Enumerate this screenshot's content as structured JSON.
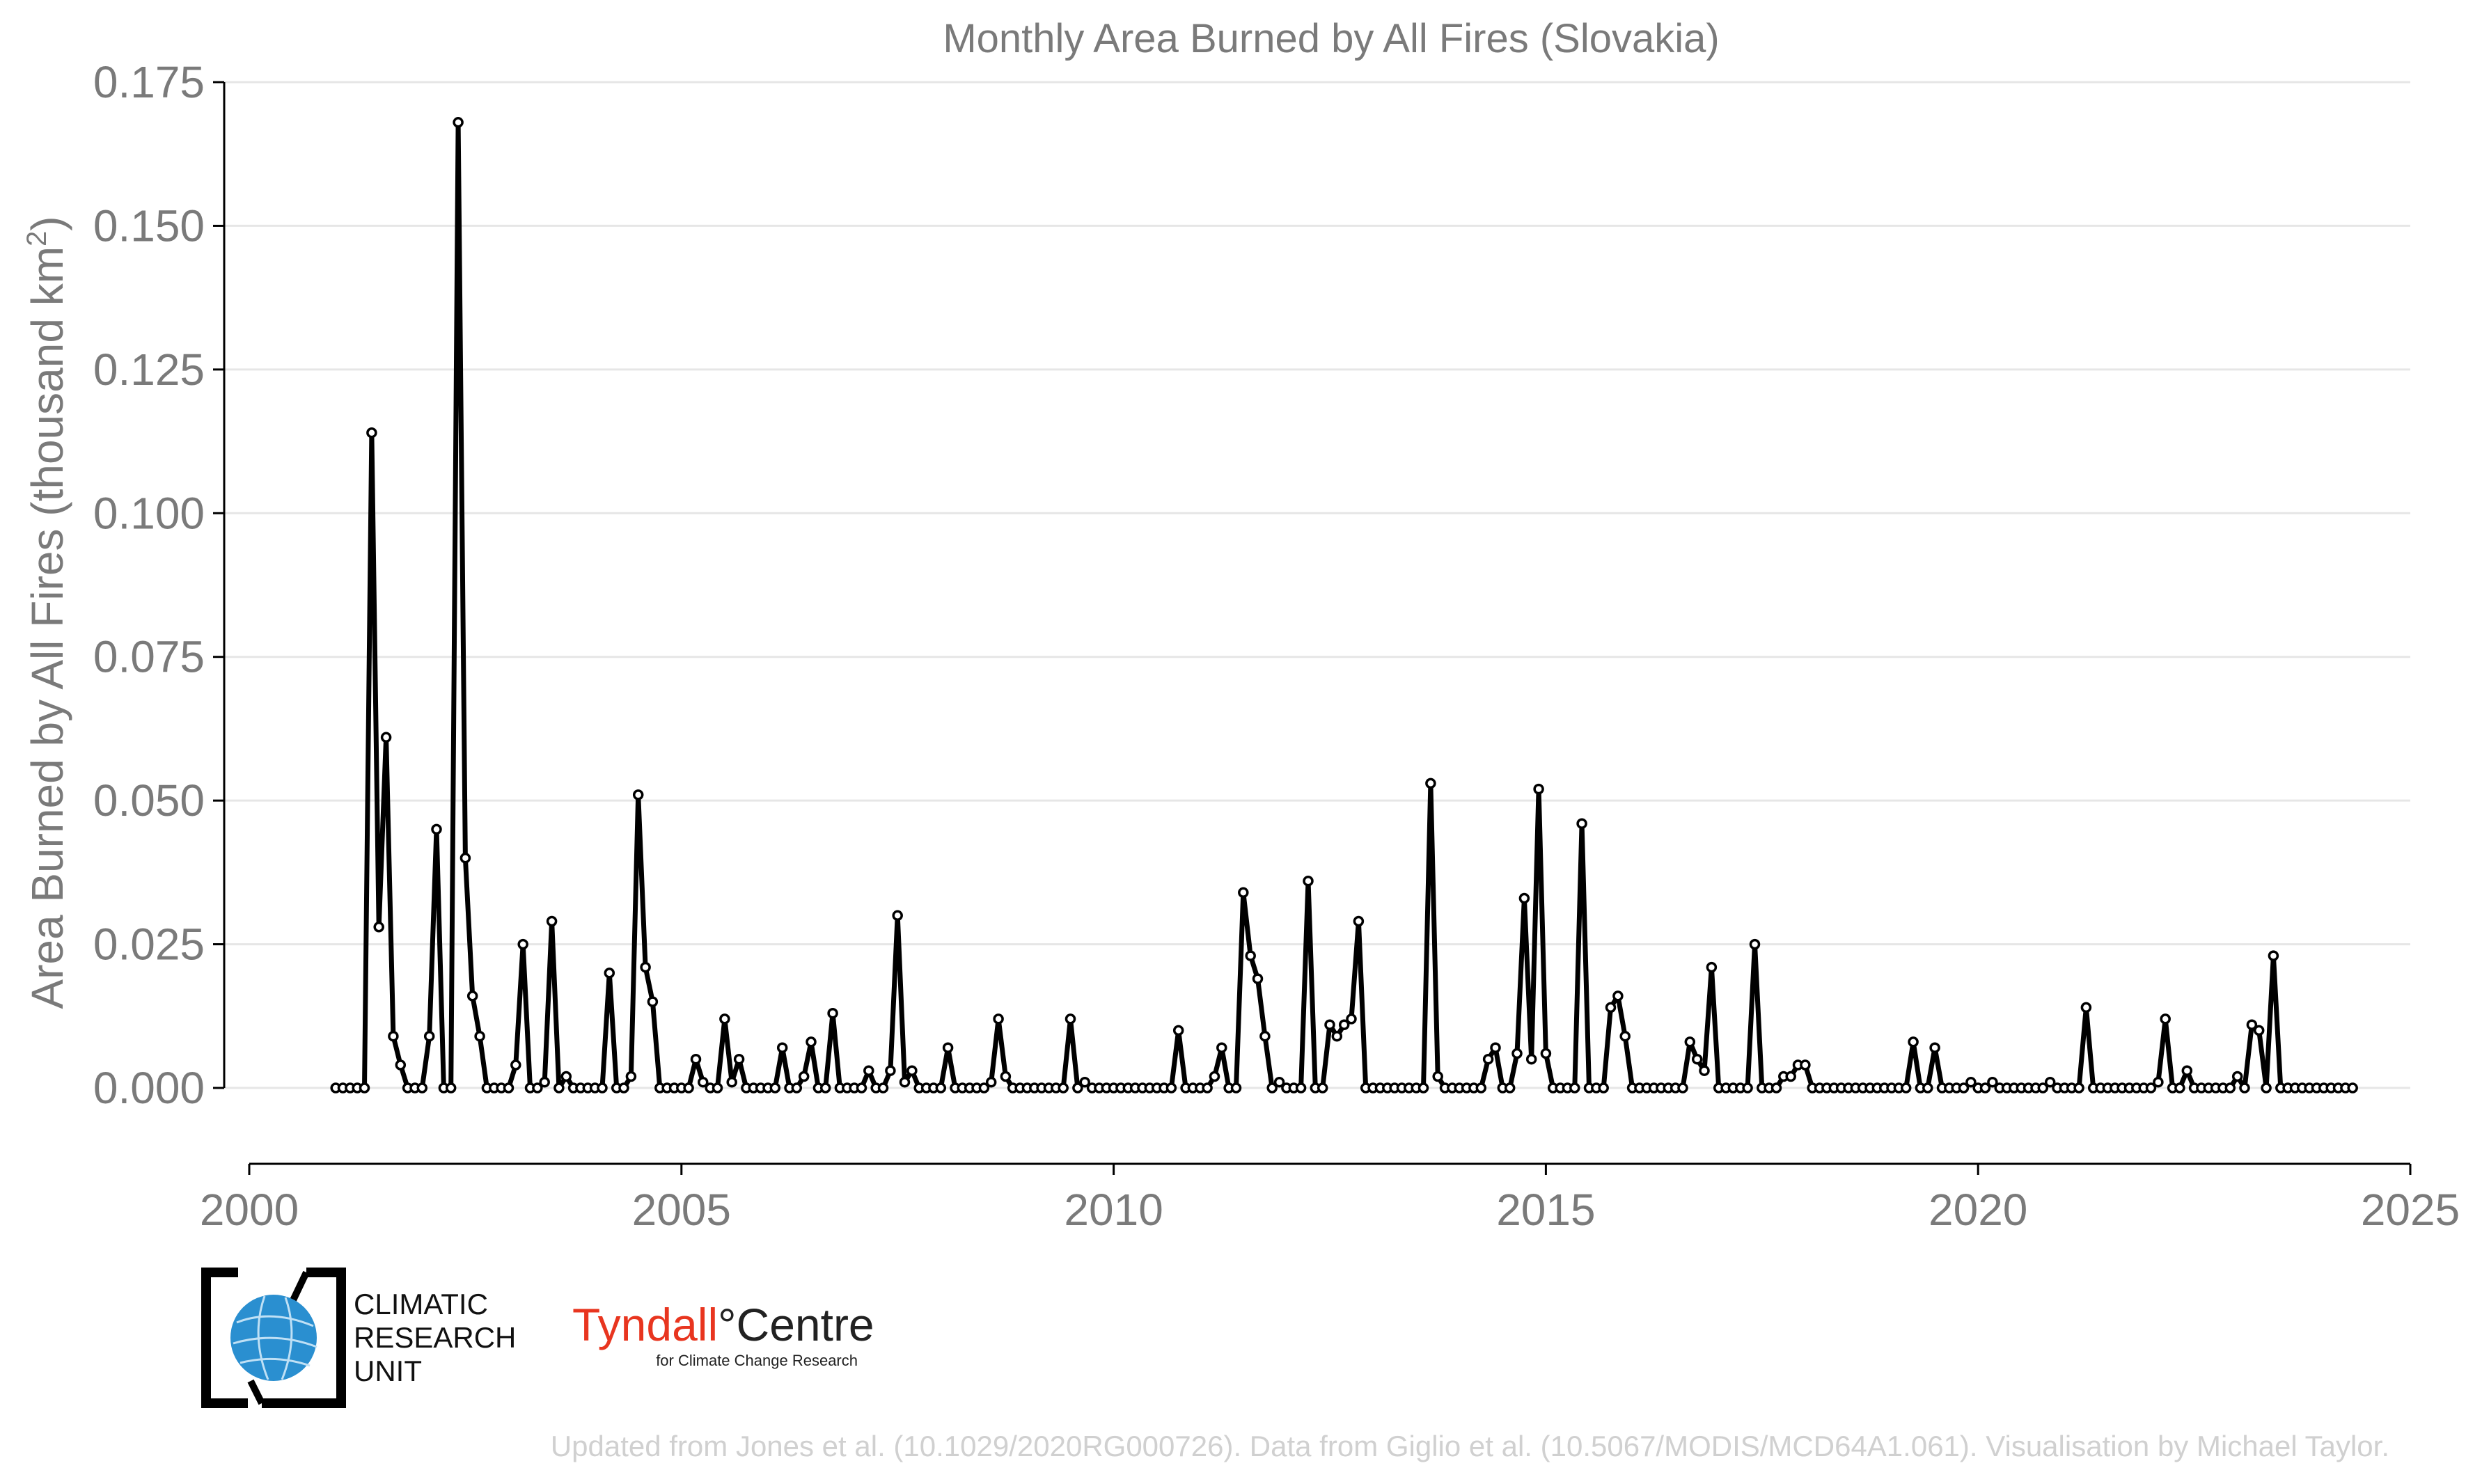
{
  "chart_data": {
    "type": "line",
    "title": "Monthly Area Burned by All Fires (Slovakia)",
    "xlabel": "",
    "ylabel": "Area Burned by All Fires (thousand km",
    "ylabel_sup": "2",
    "ylabel_close": ")",
    "xlim": [
      2000,
      2025
    ],
    "ylim": [
      -0.0125,
      0.175
    ],
    "xticks": [
      2000,
      2005,
      2010,
      2015,
      2020,
      2025
    ],
    "xtick_labels": [
      "2000",
      "2005",
      "2010",
      "2015",
      "2020",
      "2025"
    ],
    "yticks": [
      0,
      0.025,
      0.05,
      0.075,
      0.1,
      0.125,
      0.15,
      0.175
    ],
    "ytick_labels": [
      "0.000",
      "0.025",
      "0.050",
      "0.075",
      "0.100",
      "0.125",
      "0.150",
      "0.175"
    ],
    "grid": "horizontal",
    "x_start": "2001-01",
    "series": [
      {
        "values": [
          0,
          0,
          0,
          0,
          0,
          0.114,
          0.028,
          0.061,
          0.009,
          0.004,
          0,
          0,
          0,
          0.009,
          0.045,
          0,
          0,
          0.168,
          0.04,
          0.016,
          0.009,
          0,
          0,
          0,
          0,
          0.004,
          0.025,
          0,
          0,
          0.001,
          0.029,
          0,
          0.002,
          0,
          0,
          0,
          0,
          0,
          0.02,
          0,
          0,
          0.002,
          0.051,
          0.021,
          0.015,
          0,
          0,
          0,
          0,
          0,
          0.005,
          0.001,
          0,
          0,
          0.012,
          0.001,
          0.005,
          0,
          0,
          0,
          0,
          0,
          0.007,
          0,
          0,
          0.002,
          0.008,
          0,
          0,
          0.013,
          0,
          0,
          0,
          0,
          0.003,
          0,
          0,
          0.003,
          0.03,
          0.001,
          0.003,
          0,
          0,
          0,
          0,
          0.007,
          0,
          0,
          0,
          0,
          0,
          0.001,
          0.012,
          0.002,
          0,
          0,
          0,
          0,
          0,
          0,
          0,
          0,
          0.012,
          0,
          0.001,
          0,
          0,
          0,
          0,
          0,
          0,
          0,
          0,
          0,
          0,
          0,
          0,
          0.01,
          0,
          0,
          0,
          0,
          0.002,
          0.007,
          0,
          0,
          0.034,
          0.023,
          0.019,
          0.009,
          0,
          0.001,
          0,
          0,
          0,
          0.036,
          0,
          0,
          0.011,
          0.009,
          0.011,
          0.012,
          0.029,
          0,
          0,
          0,
          0,
          0,
          0,
          0,
          0,
          0,
          0.053,
          0.002,
          0,
          0,
          0,
          0,
          0,
          0,
          0.005,
          0.007,
          0,
          0,
          0.006,
          0.033,
          0.005,
          0.052,
          0.006,
          0,
          0,
          0,
          0,
          0.046,
          0,
          0,
          0,
          0.014,
          0.016,
          0.009,
          0,
          0,
          0,
          0,
          0,
          0,
          0,
          0,
          0.008,
          0.005,
          0.003,
          0.021,
          0,
          0,
          0,
          0,
          0,
          0.025,
          0,
          0,
          0,
          0.002,
          0.002,
          0.004,
          0.004,
          0,
          0,
          0,
          0,
          0,
          0,
          0,
          0,
          0,
          0,
          0,
          0,
          0,
          0,
          0.008,
          0,
          0,
          0.007,
          0,
          0,
          0,
          0,
          0.001,
          0,
          0,
          0.001,
          0,
          0,
          0,
          0,
          0,
          0,
          0,
          0.001,
          0,
          0,
          0,
          0,
          0.014,
          0,
          0,
          0,
          0,
          0,
          0,
          0,
          0,
          0,
          0.001,
          0.012,
          0,
          0,
          0.003,
          0,
          0,
          0,
          0,
          0,
          0,
          0.002,
          0,
          0.011,
          0.01,
          0,
          0.023,
          0,
          0,
          0,
          0,
          0,
          0,
          0,
          0,
          0,
          0,
          0
        ]
      }
    ]
  },
  "logos": {
    "cru": [
      "CLIMATIC",
      "RESEARCH",
      "UNIT"
    ],
    "tyndall_name": "Tyndall",
    "tyndall_degree": "°",
    "tyndall_centre": "Centre",
    "tyndall_sub": "for Climate Change Research"
  },
  "credit": "Updated from Jones et al. (10.1029/2020RG000726). Data from Giglio et al. (10.5067/MODIS/MCD64A1.061). Visualisation by Michael Taylor.",
  "colors": {
    "line": "#000000",
    "marker_fill": "#ffffff",
    "grid": "#e6e6e6",
    "axis": "#000000",
    "text": "#7a7a7a",
    "credit": "#d0d0d0",
    "tyndall_red": "#e8351f",
    "globe_blue": "#2a8fd0"
  }
}
